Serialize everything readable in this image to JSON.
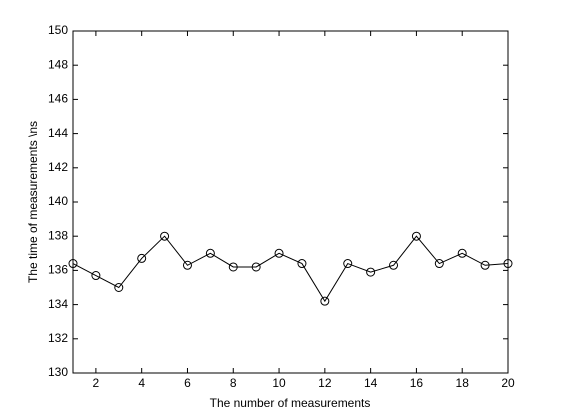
{
  "chart_data": {
    "type": "line",
    "x_label": "The number of measurements",
    "y_label": "The time of measurements  \\ns",
    "x": [
      1,
      2,
      3,
      4,
      5,
      6,
      7,
      8,
      9,
      10,
      11,
      12,
      13,
      14,
      15,
      16,
      17,
      18,
      19,
      20
    ],
    "series": [
      {
        "color": "#000000",
        "marker": "circle",
        "values": [
          136.4,
          135.7,
          135.0,
          136.7,
          138.0,
          136.3,
          137.0,
          136.2,
          136.2,
          137.0,
          136.4,
          134.2,
          136.4,
          135.9,
          136.3,
          138.0,
          136.4,
          137.0,
          136.3,
          136.4
        ]
      }
    ],
    "xlim": [
      1,
      20
    ],
    "xticks": [
      2,
      4,
      6,
      8,
      10,
      12,
      14,
      16,
      18,
      20
    ],
    "ylim": [
      130,
      150
    ],
    "yticks": [
      130,
      132,
      134,
      136,
      138,
      140,
      142,
      144,
      146,
      148,
      150
    ],
    "grid": false
  }
}
